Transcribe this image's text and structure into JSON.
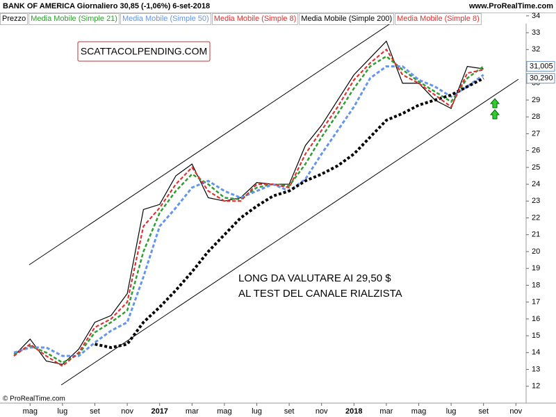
{
  "chart_data": {
    "type": "line",
    "title": "BANK OF AMERICA   Giornaliero   30,85 (-1,06%)   6-set-2018",
    "source": "www.ProRealTime.com",
    "footer": "© ProRealTime.com",
    "watermark": "SCATTACOLPENDING.COM",
    "annotation": [
      "LONG DA VALUTARE AI 29,50 $",
      "AL TEST DEL CANALE RIALZISTA"
    ],
    "categories": [
      null,
      "mag",
      null,
      "lug",
      null,
      "set",
      null,
      "nov",
      null,
      "2017",
      null,
      "mar",
      null,
      "mag",
      null,
      "lug",
      null,
      "set",
      null,
      "nov",
      null,
      "2018",
      null,
      "mar",
      null,
      "mag",
      null,
      "lug",
      null,
      "set",
      null,
      "nov"
    ],
    "series": [
      {
        "name": "Prezzo",
        "color": "#000000",
        "values": [
          13.8,
          14.8,
          13.5,
          13.3,
          14.2,
          15.8,
          16.2,
          17.5,
          22.5,
          22.8,
          24.5,
          25.2,
          23.2,
          23.0,
          23.2,
          24.1,
          24.0,
          24.0,
          26.3,
          27.5,
          29.0,
          30.5,
          31.5,
          32.5,
          30.0,
          30.0,
          29.0,
          28.5,
          31.0,
          30.85,
          null,
          null
        ]
      },
      {
        "name": "Media Mobile (Simple 21)",
        "color": "#2e9e2e",
        "values": [
          13.9,
          14.4,
          14.0,
          13.4,
          13.9,
          15.2,
          15.8,
          16.5,
          20.0,
          22.3,
          23.6,
          24.6,
          24.0,
          23.2,
          23.1,
          23.8,
          24.0,
          23.9,
          25.2,
          26.8,
          28.2,
          29.7,
          31.0,
          31.6,
          30.8,
          30.1,
          29.5,
          28.9,
          30.3,
          31.005,
          null,
          null
        ]
      },
      {
        "name": "Media Mobile (Simple 50)",
        "color": "#6495ed",
        "values": [
          14.0,
          14.3,
          14.3,
          13.8,
          13.8,
          14.6,
          15.3,
          15.8,
          18.5,
          21.5,
          22.6,
          23.8,
          24.2,
          23.6,
          23.2,
          23.6,
          24.0,
          23.6,
          24.3,
          25.8,
          27.2,
          28.6,
          30.3,
          31.0,
          31.0,
          30.2,
          29.8,
          29.2,
          29.8,
          30.5,
          null,
          null
        ]
      },
      {
        "name": "Media Mobile (Simple 8)",
        "color": "#e03030",
        "values": [
          13.8,
          14.5,
          13.8,
          13.2,
          14.0,
          15.5,
          16.0,
          17.0,
          21.5,
          22.6,
          24.0,
          25.0,
          23.6,
          23.0,
          23.0,
          24.0,
          24.0,
          23.8,
          25.8,
          27.2,
          28.6,
          30.2,
          31.2,
          32.0,
          30.5,
          30.0,
          29.3,
          28.6,
          30.6,
          30.8,
          null,
          null
        ]
      },
      {
        "name": "Media Mobile (Simple 200)",
        "color": "#000000",
        "values": [
          null,
          null,
          null,
          null,
          null,
          14.5,
          14.3,
          14.5,
          15.8,
          16.7,
          17.7,
          18.8,
          20.0,
          21.0,
          22.0,
          22.7,
          23.3,
          23.6,
          24.2,
          24.6,
          25.1,
          25.8,
          26.8,
          27.8,
          28.2,
          28.7,
          29.0,
          29.3,
          29.8,
          30.29,
          null,
          null
        ]
      },
      {
        "name": "Media Mobile (Simple 8)",
        "color": "#e03030",
        "values": [
          13.8,
          14.5,
          13.8,
          13.2,
          14.0,
          15.5,
          16.0,
          17.0,
          21.5,
          22.6,
          24.0,
          25.0,
          23.6,
          23.0,
          23.0,
          24.0,
          24.0,
          23.8,
          25.8,
          27.2,
          28.6,
          30.2,
          31.2,
          32.0,
          30.5,
          30.0,
          29.3,
          28.6,
          30.6,
          30.8,
          null,
          null
        ]
      }
    ],
    "last_labels": [
      {
        "value": 31.005,
        "label": "31,005"
      },
      {
        "value": 30.29,
        "label": "30,290"
      }
    ],
    "ylim": [
      11,
      34.2
    ],
    "yticks": [
      12,
      13,
      14,
      15,
      16,
      17,
      18,
      19,
      20,
      21,
      22,
      23,
      24,
      25,
      26,
      27,
      28,
      29,
      30,
      31,
      32,
      33,
      34
    ]
  }
}
